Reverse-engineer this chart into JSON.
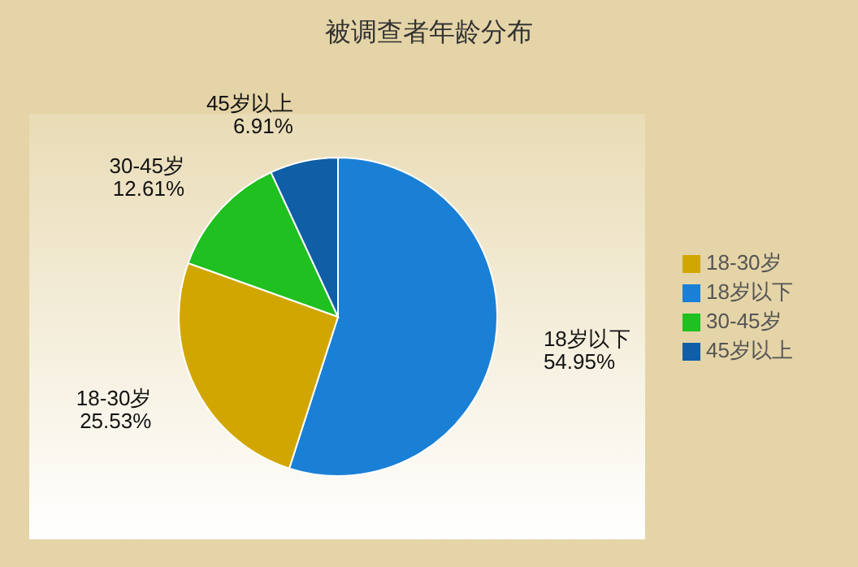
{
  "chart_data": {
    "type": "pie",
    "title": "被调查者年龄分布",
    "categories": [
      "18岁以下",
      "18-30岁",
      "30-45岁",
      "45岁以上"
    ],
    "values": [
      54.95,
      25.53,
      12.61,
      6.91
    ],
    "value_labels": [
      "54.95%",
      "25.53%",
      "12.61%",
      "6.91%"
    ],
    "colors": [
      "#1a80d6",
      "#d2a600",
      "#1fc01f",
      "#0f5ea6"
    ],
    "legend": "right"
  }
}
